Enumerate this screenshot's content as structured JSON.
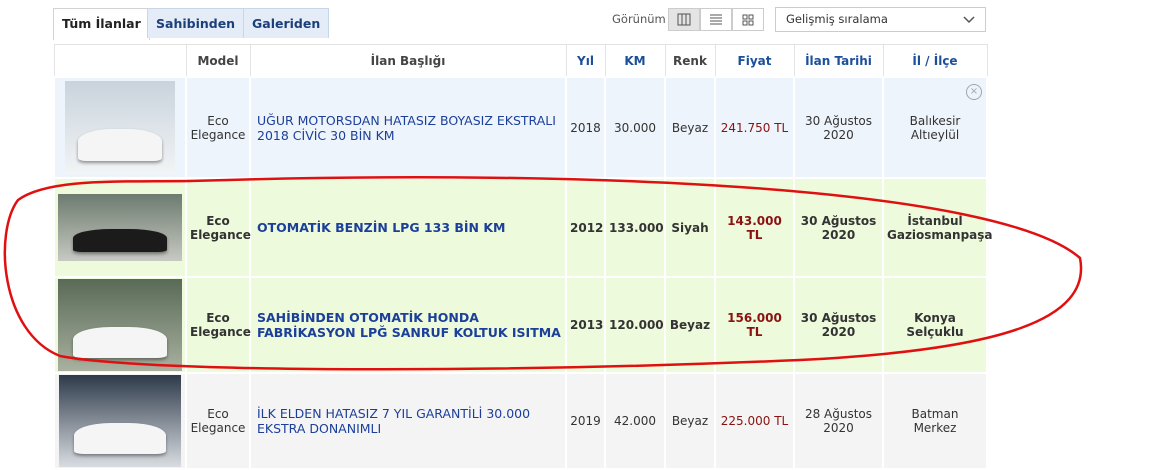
{
  "tabs": [
    "Tüm İlanlar",
    "Sahibinden",
    "Galeriden"
  ],
  "view_label": "Görünüm",
  "sort_select": "Gelişmiş sıralama",
  "table": {
    "headers": [
      "Model",
      "İlan Başlığı",
      "Yıl",
      "KM",
      "Renk",
      "Fiyat",
      "İlan Tarihi",
      "İl / İlçe"
    ],
    "rows": [
      {
        "model": "Eco Elegance",
        "title": "UĞUR MOTORSDAN HATASIZ BOYASIZ EKSTRALI 2018 CİVİC 30 BİN KM",
        "year": "2018",
        "km": "30.000",
        "color": "Beyaz",
        "price": "241.750 TL",
        "date": "30 Ağustos 2020",
        "city": "Balıkesir",
        "district": "Altıeylül"
      },
      {
        "model": "Eco Elegance",
        "title": "OTOMATİK BENZİN LPG 133 BİN KM",
        "year": "2012",
        "km": "133.000",
        "color": "Siyah",
        "price": "143.000 TL",
        "date": "30 Ağustos 2020",
        "city": "İstanbul",
        "district": "Gaziosmanpaşa"
      },
      {
        "model": "Eco Elegance",
        "title": "SAHİBİNDEN OTOMATİK HONDA FABRİKASYON LPĞ SANRUF KOLTUK ISITMA",
        "year": "2013",
        "km": "120.000",
        "color": "Beyaz",
        "price": "156.000 TL",
        "date": "30 Ağustos 2020",
        "city": "Konya",
        "district": "Selçuklu"
      },
      {
        "model": "Eco Elegance",
        "title": "İLK ELDEN HATASIZ 7 YIL GARANTİLİ 30.000 EKSTRA DONANIMLI",
        "year": "2019",
        "km": "42.000",
        "color": "Beyaz",
        "price": "225.000 TL",
        "date": "28 Ağustos 2020",
        "city": "Batman",
        "district": "Merkez"
      }
    ]
  }
}
